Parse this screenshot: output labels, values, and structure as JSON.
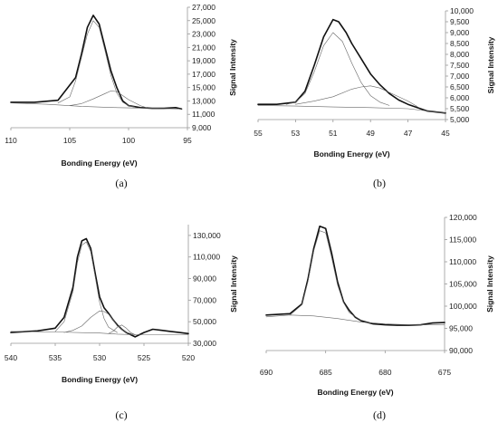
{
  "figure": {
    "panels": [
      "(a)",
      "(b)",
      "(c)",
      "(d)"
    ]
  },
  "chart_data": [
    {
      "type": "line",
      "panel": "(a)",
      "xlabel": "Bonding Energy (eV)",
      "ylabel": "Signal Intensity",
      "x_reversed": true,
      "xlim": [
        110,
        95
      ],
      "ylim": [
        9000,
        27000
      ],
      "x_ticks": [
        "110",
        "105",
        "100",
        "95"
      ],
      "y_ticks": [
        "9,000",
        "11,000",
        "13,000",
        "15,000",
        "17,000",
        "19,000",
        "21,000",
        "23,000",
        "25,000",
        "27,000"
      ],
      "series": [
        {
          "x": [
            110,
            108,
            106,
            104.5,
            104,
            103.5,
            103,
            102.5,
            102,
            101.5,
            101,
            100.5,
            100,
            99,
            98,
            97,
            96,
            95.5
          ],
          "y": [
            12800,
            12800,
            13100,
            16500,
            20000,
            24000,
            25800,
            24500,
            21000,
            17500,
            15000,
            13000,
            12300,
            12000,
            11900,
            11900,
            12000,
            11800
          ]
        },
        {
          "x": [
            106,
            105,
            104.5,
            104,
            103.5,
            103,
            102.5,
            102,
            101.5,
            101,
            100.5,
            100,
            99.5
          ],
          "y": [
            12700,
            13600,
            16000,
            19500,
            23000,
            25000,
            24000,
            20500,
            16800,
            14200,
            12800,
            12300,
            12100
          ]
        },
        {
          "x": [
            105,
            104,
            103,
            102,
            101.5,
            101,
            100.5,
            100,
            99,
            98.5
          ],
          "y": [
            12300,
            12600,
            13300,
            14100,
            14500,
            14400,
            13800,
            13200,
            12300,
            12000
          ]
        },
        {
          "x": [
            110,
            107,
            104,
            101,
            98,
            95.5
          ],
          "y": [
            12700,
            12500,
            12200,
            12000,
            11900,
            11800
          ]
        }
      ]
    },
    {
      "type": "line",
      "panel": "(b)",
      "xlabel": "Bonding Energy (eV)",
      "ylabel": "Signal Intensity",
      "x_reversed": true,
      "xlim": [
        55,
        45
      ],
      "ylim": [
        5000,
        10000
      ],
      "x_ticks": [
        "55",
        "53",
        "51",
        "49",
        "47",
        "45"
      ],
      "y_ticks": [
        "5,000",
        "5,500",
        "6,000",
        "6,500",
        "7,000",
        "7,500",
        "8,000",
        "8,500",
        "9,000",
        "9,500",
        "10,000"
      ],
      "series": [
        {
          "x": [
            55,
            54,
            53,
            52.5,
            52,
            51.5,
            51,
            50.7,
            50.3,
            50,
            49.5,
            49,
            48.5,
            48,
            47.5,
            47,
            46,
            45
          ],
          "y": [
            5700,
            5700,
            5800,
            6300,
            7500,
            8800,
            9600,
            9500,
            9000,
            8500,
            7800,
            7100,
            6600,
            6200,
            5900,
            5700,
            5400,
            5300
          ]
        },
        {
          "x": [
            53.5,
            53,
            52.5,
            52,
            51.5,
            51,
            50.5,
            50,
            49.5,
            49,
            48.5,
            48
          ],
          "y": [
            5700,
            5800,
            6200,
            7200,
            8400,
            9000,
            8600,
            7600,
            6700,
            6100,
            5800,
            5650
          ]
        },
        {
          "x": [
            53,
            52,
            51,
            50,
            49.5,
            49,
            48.5,
            48,
            47,
            46.5
          ],
          "y": [
            5700,
            5850,
            6050,
            6400,
            6500,
            6550,
            6450,
            6250,
            5850,
            5600
          ]
        },
        {
          "x": [
            55,
            53,
            51,
            49,
            47,
            45
          ],
          "y": [
            5650,
            5620,
            5580,
            5550,
            5500,
            5300
          ]
        }
      ]
    },
    {
      "type": "line",
      "panel": "(c)",
      "xlabel": "Bonding Energy (eV)",
      "ylabel": "Signal Intensity",
      "x_reversed": true,
      "xlim": [
        540,
        520
      ],
      "ylim": [
        30000,
        140000
      ],
      "x_ticks": [
        "540",
        "535",
        "530",
        "525",
        "520"
      ],
      "y_ticks": [
        "30,000",
        "50,000",
        "70,000",
        "90,000",
        "110,000",
        "130,000"
      ],
      "series": [
        {
          "x": [
            540,
            537,
            535,
            534,
            533,
            532.5,
            532,
            531.5,
            531,
            530.5,
            530,
            529.5,
            529,
            528.5,
            528,
            527.5,
            527,
            526.5,
            526,
            525,
            524,
            523,
            522,
            521,
            520
          ],
          "y": [
            40000,
            41500,
            44000,
            54000,
            82000,
            110000,
            125000,
            127000,
            118000,
            95000,
            73000,
            63000,
            58000,
            52000,
            47000,
            43000,
            40000,
            38000,
            36000,
            40000,
            43000,
            42000,
            41000,
            40000,
            39000
          ]
        },
        {
          "x": [
            535,
            534,
            533,
            532.5,
            532,
            531.5,
            531,
            530.5,
            530,
            529.5,
            529,
            528
          ],
          "y": [
            41000,
            50000,
            78000,
            105000,
            121000,
            124000,
            115000,
            92000,
            68000,
            53000,
            45000,
            40000
          ]
        },
        {
          "x": [
            534,
            533,
            532,
            531,
            530,
            529.5,
            529,
            528.5,
            528,
            527,
            526
          ],
          "y": [
            40000,
            42000,
            46000,
            54000,
            60000,
            59500,
            57000,
            52000,
            46000,
            40000,
            38000
          ]
        },
        {
          "x": [
            529,
            528.5,
            528,
            527.5,
            527,
            526.5,
            526
          ],
          "y": [
            39000,
            41000,
            45000,
            47000,
            44000,
            40000,
            38000
          ]
        },
        {
          "x": [
            540,
            535,
            530,
            528,
            526,
            522,
            520
          ],
          "y": [
            41000,
            40500,
            39500,
            38500,
            38000,
            38000,
            38000
          ]
        }
      ]
    },
    {
      "type": "line",
      "panel": "(d)",
      "xlabel": "Bonding Energy (eV)",
      "ylabel": "Signal Intensity",
      "x_reversed": true,
      "xlim": [
        690,
        675
      ],
      "ylim": [
        90000,
        120000
      ],
      "x_ticks": [
        "690",
        "685",
        "680",
        "675"
      ],
      "y_ticks": [
        "90,000",
        "95,000",
        "100,000",
        "105,000",
        "110,000",
        "115,000",
        "120,000"
      ],
      "series": [
        {
          "x": [
            690,
            688,
            687,
            686.5,
            686,
            685.5,
            685,
            684.5,
            684,
            683.5,
            683,
            682.5,
            682,
            681,
            680,
            679,
            678,
            677,
            676,
            675
          ],
          "y": [
            98000,
            98300,
            100500,
            106000,
            113000,
            118000,
            117500,
            112000,
            105500,
            101000,
            99000,
            97500,
            96700,
            96000,
            95800,
            95700,
            95700,
            95800,
            96200,
            96300
          ]
        },
        {
          "x": [
            688,
            687,
            686.5,
            686,
            685.5,
            685,
            684.5,
            684,
            683.5,
            683,
            682
          ],
          "y": [
            98000,
            100300,
            105500,
            112500,
            117000,
            116500,
            111000,
            104800,
            100800,
            98500,
            96800
          ]
        },
        {
          "x": [
            690,
            688,
            686,
            684,
            682,
            680,
            678,
            676,
            675
          ],
          "y": [
            97600,
            98000,
            97800,
            97200,
            96400,
            96000,
            95800,
            95800,
            95800
          ]
        }
      ]
    }
  ]
}
